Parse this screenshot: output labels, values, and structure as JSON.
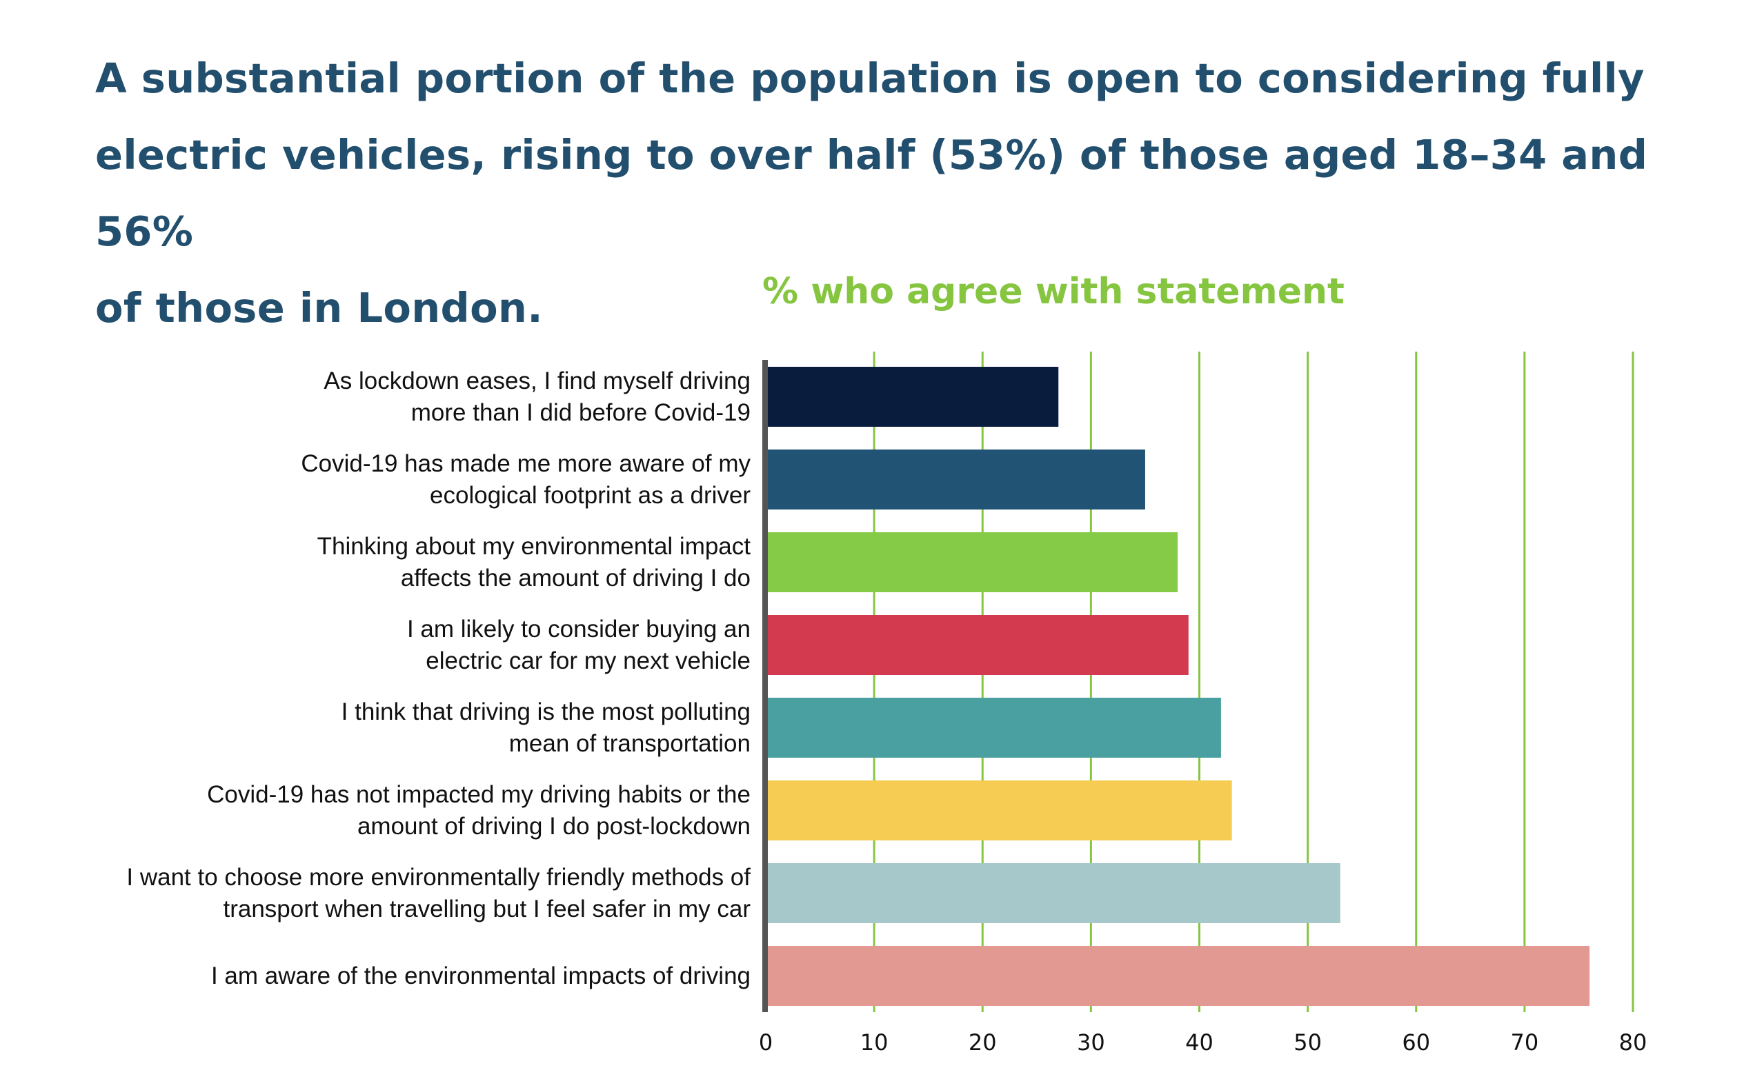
{
  "headline": {
    "line1": "A substantial portion of the population is open to considering fully",
    "line2": "electric vehicles, rising to over half (53%) of those aged 18–34 and 56%",
    "line3": "of those in London."
  },
  "colors": {
    "headline": "#234f6e",
    "chart_title": "#86c540",
    "gridline": "#86c540",
    "axis": "#555555"
  },
  "chart_data": {
    "type": "bar",
    "orientation": "horizontal",
    "title": "% who agree with statement",
    "xlabel": "",
    "ylabel": "",
    "xlim": [
      0,
      80
    ],
    "x_ticks": [
      0,
      10,
      20,
      30,
      40,
      50,
      60,
      70,
      80
    ],
    "grid": "vertical",
    "categories": [
      [
        "As lockdown eases, I find myself driving",
        "more than I did before Covid-19"
      ],
      [
        "Covid-19 has made me more aware of my",
        "ecological footprint as a driver"
      ],
      [
        "Thinking about my environmental impact",
        "affects the amount of driving I do"
      ],
      [
        "I am likely to consider buying an",
        "electric car for my next vehicle"
      ],
      [
        "I think that driving is the most polluting",
        "mean of transportation"
      ],
      [
        "Covid-19 has not impacted my driving habits or the",
        "amount of driving I do post-lockdown"
      ],
      [
        "I want to choose more environmentally friendly methods of",
        "transport when travelling but I feel safer in my car"
      ],
      [
        "I am aware of the environmental impacts of driving"
      ]
    ],
    "values": [
      27,
      35,
      38,
      39,
      42,
      43,
      53,
      76
    ],
    "bar_colors": [
      "#0a1c3d",
      "#205374",
      "#86cb47",
      "#d3394f",
      "#4aa0a0",
      "#f6cc53",
      "#a6c8cb",
      "#e19992"
    ]
  }
}
